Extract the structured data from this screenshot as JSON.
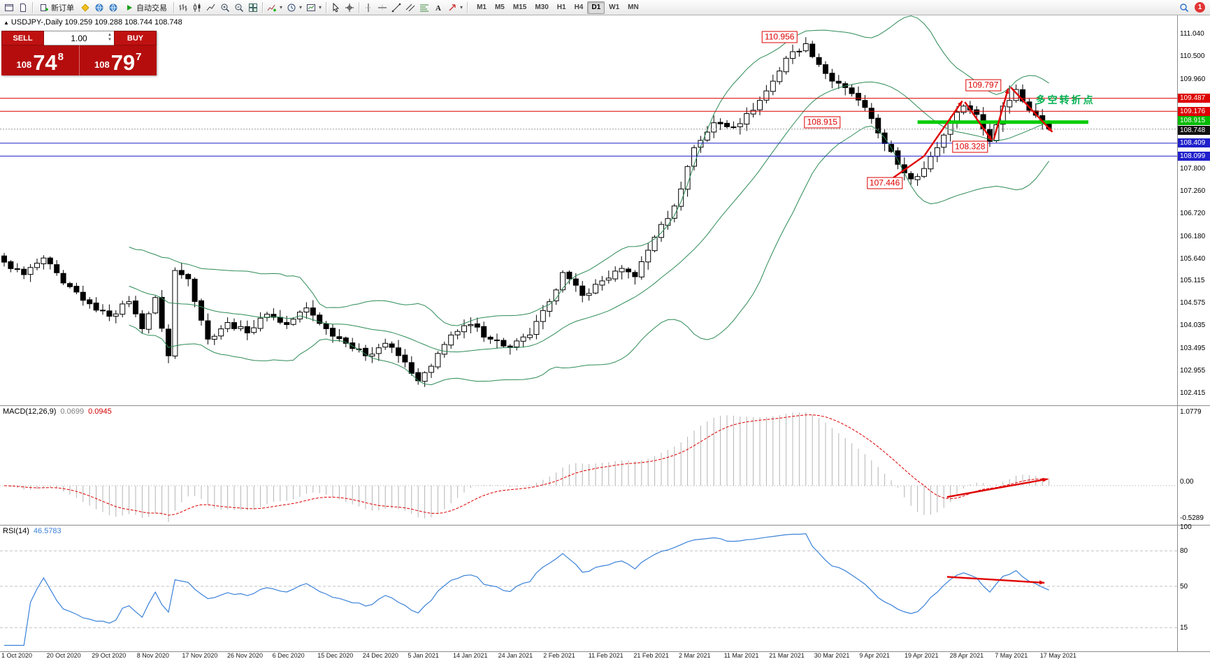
{
  "toolbar": {
    "badge": "1",
    "buttons": [
      {
        "icon": "window",
        "name": "new-chart"
      },
      {
        "icon": "page",
        "name": "profiles"
      },
      {
        "sep": true
      },
      {
        "icon": "order",
        "name": "new-order",
        "label": "新订单"
      },
      {
        "icon": "diamond",
        "name": "metaeditor"
      },
      {
        "icon": "globe",
        "name": "community"
      },
      {
        "icon": "globe",
        "name": "market"
      },
      {
        "icon": "play",
        "name": "autotrading",
        "label": "自动交易"
      },
      {
        "sep": true
      },
      {
        "icon": "bars",
        "name": "bar-chart-mode"
      },
      {
        "icon": "candles",
        "name": "candlestick-mode"
      },
      {
        "icon": "linechart",
        "name": "line-chart-mode"
      },
      {
        "icon": "zoomin",
        "name": "zoom-in"
      },
      {
        "icon": "zoomout",
        "name": "zoom-out"
      },
      {
        "icon": "tile",
        "name": "tile-windows"
      },
      {
        "sep": true
      },
      {
        "icon": "indicators",
        "name": "indicators-list",
        "dropdown": true
      },
      {
        "icon": "clock",
        "name": "periods",
        "dropdown": true
      },
      {
        "icon": "template",
        "name": "templates",
        "dropdown": true
      },
      {
        "sep": true
      },
      {
        "icon": "cursor",
        "name": "cursor-tool"
      },
      {
        "icon": "crosshair",
        "name": "crosshair-tool"
      },
      {
        "sep": true
      },
      {
        "icon": "vline",
        "name": "vertical-line-tool"
      },
      {
        "icon": "hline",
        "name": "horizontal-line-tool"
      },
      {
        "icon": "trendline",
        "name": "trendline-tool"
      },
      {
        "icon": "channel",
        "name": "channel-tool"
      },
      {
        "icon": "fibo",
        "name": "fibonacci-tool"
      },
      {
        "icon": "textA",
        "name": "text-tool"
      },
      {
        "icon": "arrowtool",
        "name": "arrows-tool",
        "dropdown": true
      },
      {
        "sep": true
      }
    ],
    "timeframes": [
      {
        "label": "M1"
      },
      {
        "label": "M5"
      },
      {
        "label": "M15"
      },
      {
        "label": "M30"
      },
      {
        "label": "H1"
      },
      {
        "label": "H4"
      },
      {
        "label": "D1",
        "active": true
      },
      {
        "label": "W1"
      },
      {
        "label": "MN"
      }
    ]
  },
  "symbol_info": {
    "arrow": "▲",
    "text": "USDJPY-,Daily 109.259 109.288 108.744 108.748"
  },
  "trade_panel": {
    "sell_label": "SELL",
    "buy_label": "BUY",
    "volume": "1.00",
    "sell_small": "108",
    "sell_big": "74",
    "sell_sup": "8",
    "buy_small": "108",
    "buy_big": "79",
    "buy_sup": "7"
  },
  "price_axis": {
    "ticks": [
      "111.040",
      "110.500",
      "109.960",
      "107.800",
      "107.260",
      "106.720",
      "106.180",
      "105.640",
      "105.115",
      "104.575",
      "104.035",
      "103.495",
      "102.955",
      "102.415"
    ],
    "colored_labels": [
      {
        "text": "109.487",
        "price": 109.487,
        "bg": "#dd0000"
      },
      {
        "text": "109.176",
        "price": 109.176,
        "bg": "#dd0000"
      },
      {
        "text": "108.915",
        "price": 108.915,
        "bg": "#00bb00",
        "dy": -2
      },
      {
        "text": "108.748",
        "price": 108.748,
        "bg": "#111111",
        "dy": 2
      },
      {
        "text": "108.409",
        "price": 108.409,
        "bg": "#2020cc"
      },
      {
        "text": "108.099",
        "price": 108.099,
        "bg": "#2020cc"
      }
    ]
  },
  "hlines": [
    {
      "price": 109.487,
      "color": "#dd0000",
      "style": "solid"
    },
    {
      "price": 109.176,
      "color": "#dd0000",
      "style": "solid"
    },
    {
      "price": 108.409,
      "color": "#2020cc",
      "style": "solid"
    },
    {
      "price": 108.099,
      "color": "#2020cc",
      "style": "solid"
    },
    {
      "price": 108.748,
      "color": "#999999",
      "style": "dotted"
    }
  ],
  "green_segment": {
    "price": 108.915,
    "start_index": 139,
    "end_index": 165,
    "color": "#00cc00",
    "thickness": 5
  },
  "annotations": [
    {
      "text": "110.956",
      "index": 118,
      "price": 110.956,
      "style": "box"
    },
    {
      "text": "109.797",
      "index": 149,
      "price": 109.797,
      "style": "box"
    },
    {
      "text": "108.915",
      "index": 124.5,
      "price": 108.915,
      "style": "box"
    },
    {
      "text": "108.328",
      "index": 147,
      "price": 108.328,
      "style": "box"
    },
    {
      "text": "107.446",
      "index": 134,
      "price": 107.446,
      "style": "box"
    },
    {
      "text": "多空转折点",
      "index": 161.5,
      "price": 109.45,
      "style": "green"
    }
  ],
  "arrows": [
    {
      "panel": "main",
      "points": [
        [
          134.6,
          107.5
        ],
        [
          140.0,
          108.1
        ],
        [
          145.8,
          109.42
        ]
      ]
    },
    {
      "panel": "main",
      "points": [
        [
          146.2,
          109.4
        ],
        [
          150.3,
          108.48
        ]
      ]
    },
    {
      "panel": "main",
      "points": [
        [
          150.6,
          108.5
        ],
        [
          152.8,
          109.72
        ]
      ]
    },
    {
      "panel": "main",
      "points": [
        [
          153.2,
          109.75
        ],
        [
          159.5,
          108.68
        ]
      ]
    },
    {
      "panel": "macd",
      "points": [
        [
          143.5,
          -0.115
        ],
        [
          158.8,
          0.105
        ]
      ]
    },
    {
      "panel": "rsi",
      "points": [
        [
          143.5,
          58.0
        ],
        [
          158.3,
          53.0
        ]
      ]
    }
  ],
  "indicator_labels": {
    "macd_name": "MACD(12,26,9)",
    "macd_v1": "0.0699",
    "macd_v2": "0.0945",
    "macd_ticks": [
      "1.0779",
      "0.00",
      "-0.5289"
    ],
    "rsi_name": "RSI(14)",
    "rsi_v": "46.5783",
    "rsi_ticks": [
      "100",
      "80",
      "50",
      "15"
    ]
  },
  "colors": {
    "bollinger": "#2e8b57",
    "candle_up": "#ffffff",
    "candle_down": "#000000",
    "candle_outline": "#000000",
    "macd_hist": "#b4b4b4",
    "macd_signal": "#dd0000",
    "rsi_line": "#3b82d9",
    "arrow": "#e00000"
  },
  "chart_data": {
    "type": "candlestick",
    "symbol": "USDJPY-",
    "timeframe": "Daily",
    "ohlc_display": {
      "open": "109.259",
      "high": "109.288",
      "low": "108.744",
      "close": "108.748"
    },
    "num_bars": 160,
    "ylim": [
      102.11,
      111.48
    ],
    "close_anchors": [
      [
        0,
        105.55
      ],
      [
        3,
        105.25
      ],
      [
        6,
        105.65
      ],
      [
        9,
        105.05
      ],
      [
        13,
        104.55
      ],
      [
        16,
        104.25
      ],
      [
        19,
        104.6
      ],
      [
        21,
        103.95
      ],
      [
        23,
        104.7
      ],
      [
        25,
        103.3
      ],
      [
        26,
        105.35
      ],
      [
        28,
        105.15
      ],
      [
        31,
        103.7
      ],
      [
        34,
        104.1
      ],
      [
        37,
        103.85
      ],
      [
        40,
        104.3
      ],
      [
        43,
        104.05
      ],
      [
        46,
        104.45
      ],
      [
        49,
        103.95
      ],
      [
        52,
        103.6
      ],
      [
        55,
        103.3
      ],
      [
        58,
        103.6
      ],
      [
        61,
        103.15
      ],
      [
        63,
        102.7
      ],
      [
        65,
        103.05
      ],
      [
        68,
        103.8
      ],
      [
        71,
        104.05
      ],
      [
        74,
        103.7
      ],
      [
        77,
        103.5
      ],
      [
        80,
        103.8
      ],
      [
        83,
        104.6
      ],
      [
        85,
        105.3
      ],
      [
        88,
        104.75
      ],
      [
        91,
        105.1
      ],
      [
        94,
        105.4
      ],
      [
        96,
        105.2
      ],
      [
        99,
        106.15
      ],
      [
        102,
        106.9
      ],
      [
        105,
        108.3
      ],
      [
        108,
        108.9
      ],
      [
        111,
        108.8
      ],
      [
        114,
        109.2
      ],
      [
        117,
        109.9
      ],
      [
        119,
        110.45
      ],
      [
        122,
        110.8
      ],
      [
        124,
        110.3
      ],
      [
        126,
        109.9
      ],
      [
        129,
        109.6
      ],
      [
        132,
        109.0
      ],
      [
        134,
        108.4
      ],
      [
        136,
        107.9
      ],
      [
        138,
        107.55
      ],
      [
        140,
        107.8
      ],
      [
        142,
        108.3
      ],
      [
        144,
        108.9
      ],
      [
        146,
        109.3
      ],
      [
        148,
        109.1
      ],
      [
        150,
        108.45
      ],
      [
        152,
        109.3
      ],
      [
        154,
        109.7
      ],
      [
        156,
        109.2
      ],
      [
        158,
        108.9
      ],
      [
        159,
        108.75
      ]
    ],
    "wick_overrides": {
      "122": {
        "high": 110.956
      },
      "138": {
        "low": 107.446
      },
      "150": {
        "low": 108.328
      },
      "153": {
        "high": 109.797
      }
    },
    "indicators": [
      {
        "type": "bollinger",
        "period": 20,
        "deviation": 2
      },
      {
        "type": "macd",
        "fast": 12,
        "slow": 26,
        "signal": 9
      },
      {
        "type": "rsi",
        "period": 14,
        "levels": [
          80,
          50,
          15
        ]
      }
    ],
    "x_labels": [
      "1 Oct 2020",
      "20 Oct 2020",
      "29 Oct 2020",
      "8 Nov 2020",
      "17 Nov 2020",
      "26 Nov 2020",
      "6 Dec 2020",
      "15 Dec 2020",
      "24 Dec 2020",
      "5 Jan 2021",
      "14 Jan 2021",
      "24 Jan 2021",
      "2 Feb 2021",
      "11 Feb 2021",
      "21 Feb 2021",
      "2 Mar 2021",
      "11 Mar 2021",
      "21 Mar 2021",
      "30 Mar 2021",
      "9 Apr 2021",
      "19 Apr 2021",
      "28 Apr 2021",
      "7 May 2021",
      "17 May 2021"
    ]
  }
}
